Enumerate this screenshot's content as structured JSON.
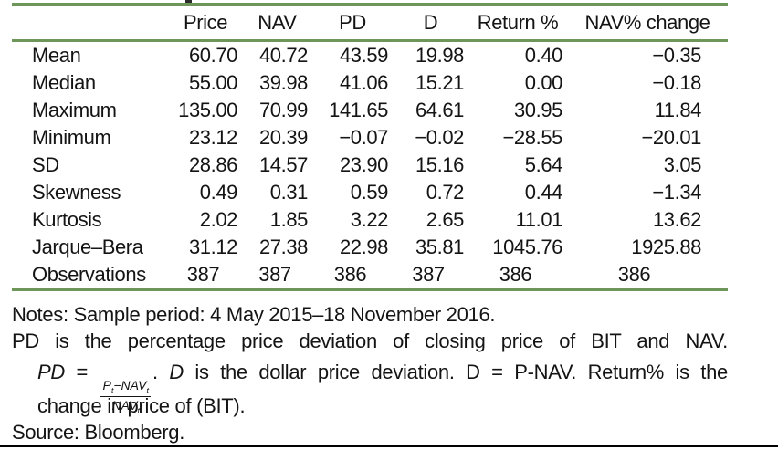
{
  "table": {
    "columns": [
      "",
      "Price",
      "NAV",
      "PD",
      "D",
      "Return %",
      "NAV% change"
    ],
    "rows": [
      {
        "label": "Mean",
        "values": [
          "60.70",
          "40.72",
          "43.59",
          "19.98",
          "0.40",
          "−0.35"
        ]
      },
      {
        "label": "Median",
        "values": [
          "55.00",
          "39.98",
          "41.06",
          "15.21",
          "0.00",
          "−0.18"
        ]
      },
      {
        "label": "Maximum",
        "values": [
          "135.00",
          "70.99",
          "141.65",
          "64.61",
          "30.95",
          "11.84"
        ]
      },
      {
        "label": "Minimum",
        "values": [
          "23.12",
          "20.39",
          "−0.07",
          "−0.02",
          "−28.55",
          "−20.01"
        ]
      },
      {
        "label": "SD",
        "values": [
          "28.86",
          "14.57",
          "23.90",
          "15.16",
          "5.64",
          "3.05"
        ]
      },
      {
        "label": "Skewness",
        "values": [
          "0.49",
          "0.31",
          "0.59",
          "0.72",
          "0.44",
          "−1.34"
        ]
      },
      {
        "label": "Kurtosis",
        "values": [
          "2.02",
          "1.85",
          "3.22",
          "2.65",
          "11.01",
          "13.62"
        ]
      },
      {
        "label": "Jarque–Bera",
        "values": [
          "31.12",
          "27.38",
          "22.98",
          "35.81",
          "1045.76",
          "1925.88"
        ]
      },
      {
        "label": "Observations",
        "values": [
          "387",
          "387",
          "386",
          "387",
          "386",
          "386"
        ],
        "align": "center"
      }
    ]
  },
  "notes": {
    "line1": "Notes: Sample period: 4 May 2015–18 November 2016.",
    "line2": "PD is the percentage price deviation of closing price of BIT and NAV.",
    "formula": {
      "lhs": "PD",
      "eq": " = ",
      "num_base1": "P",
      "num_sub1": "t",
      "num_op": "−NAV",
      "num_sub2": "t",
      "den_base": "NAV",
      "den_sub": "t"
    },
    "line3_period": ". ",
    "line3_d": "D",
    "line3_tail": " is the dollar price deviation. D = P-NAV. Return% is the",
    "line4": "change in price of (BIT).",
    "line5": "Source: Bloomberg."
  },
  "colors": {
    "rule_green": "#6e9659",
    "page_rule_black": "#000000",
    "text": "#141414"
  }
}
